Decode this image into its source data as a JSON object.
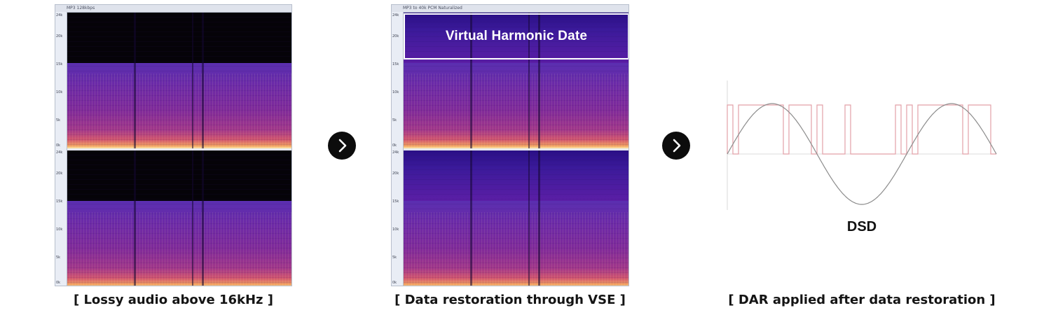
{
  "panels": [
    {
      "header": "MP3 128kbps",
      "ticks": [
        "24k",
        "20k",
        "15k",
        "10k",
        "5k",
        "0k",
        "24k",
        "20k",
        "15k",
        "10k",
        "5k",
        "0k"
      ],
      "caption": "[ Lossy audio above 16kHz ]"
    },
    {
      "header": "MP3 to 40k PCM Naturalized",
      "ticks": [
        "24k",
        "20k",
        "15k",
        "10k",
        "5k",
        "0k",
        "24k",
        "20k",
        "15k",
        "10k",
        "5k",
        "0k"
      ],
      "overlay_label": "Virtual Harmonic Date",
      "caption": "[ Data restoration through VSE ]"
    },
    {
      "waveform_label": "DSD",
      "caption": "[ DAR applied after data restoration ]"
    }
  ],
  "arrows": [
    {
      "icon": "chevron-right-icon"
    },
    {
      "icon": "chevron-right-icon"
    }
  ],
  "colors": {
    "pulse": "#e3a1a8",
    "sine": "#8c8c8c",
    "arrow_bg": "#0c0c0c"
  }
}
